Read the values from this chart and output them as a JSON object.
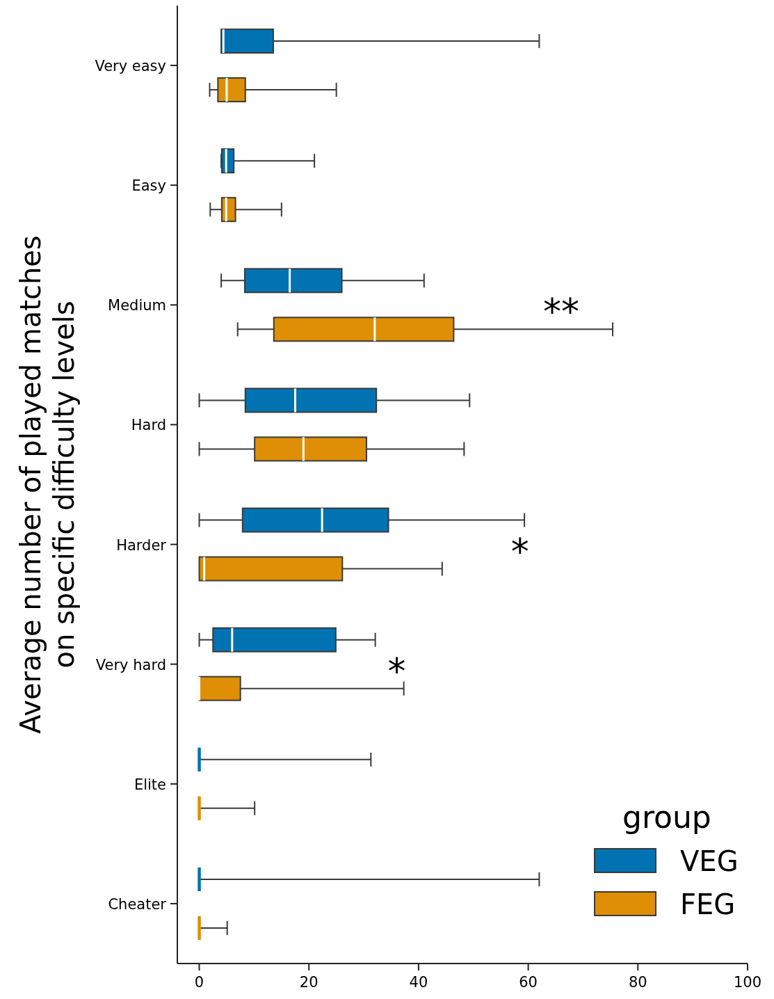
{
  "chart_data": {
    "type": "box",
    "orientation": "horizontal",
    "ylabel": "Average number of played matches\non specific difficulty levels",
    "categories": [
      "Very easy",
      "Easy",
      "Medium",
      "Hard",
      "Harder",
      "Very hard",
      "Elite",
      "Cheater"
    ],
    "xlim": [
      -4,
      100
    ],
    "xticks": [
      0,
      20,
      40,
      60,
      80,
      100
    ],
    "grid": false,
    "legend": "bottom right",
    "legend_title": "group",
    "series": [
      {
        "name": "VEG",
        "color": "#0173b2",
        "boxes": [
          {
            "low": 4,
            "q1": 4,
            "median": 4.4,
            "q3": 13.5,
            "high": 62
          },
          {
            "low": 4,
            "q1": 4.1,
            "median": 4.9,
            "q3": 6.3,
            "high": 21
          },
          {
            "low": 4,
            "q1": 8.3,
            "median": 16.5,
            "q3": 26,
            "high": 41
          },
          {
            "low": 0,
            "q1": 8.4,
            "median": 17.5,
            "q3": 32.3,
            "high": 49.3
          },
          {
            "low": 0,
            "q1": 7.9,
            "median": 22.4,
            "q3": 34.5,
            "high": 59.3
          },
          {
            "low": 0,
            "q1": 2.5,
            "median": 6,
            "q3": 24.9,
            "high": 32.1
          },
          {
            "low": 0,
            "q1": 0,
            "median": 0,
            "q3": 0,
            "high": 31.3
          },
          {
            "low": 0,
            "q1": 0,
            "median": 0,
            "q3": 0,
            "high": 62
          }
        ]
      },
      {
        "name": "FEG",
        "color": "#de8f05",
        "boxes": [
          {
            "low": 1.9,
            "q1": 3.4,
            "median": 5,
            "q3": 8.4,
            "high": 25
          },
          {
            "low": 2,
            "q1": 4.1,
            "median": 4.9,
            "q3": 6.6,
            "high": 15
          },
          {
            "low": 7,
            "q1": 13.6,
            "median": 32,
            "q3": 46.4,
            "high": 75.4
          },
          {
            "low": 0,
            "q1": 10.1,
            "median": 19,
            "q3": 30.5,
            "high": 48.3
          },
          {
            "low": 0,
            "q1": 0,
            "median": 0.9,
            "q3": 26.1,
            "high": 44.3
          },
          {
            "low": 0,
            "q1": 0,
            "median": 0,
            "q3": 7.5,
            "high": 37.3
          },
          {
            "low": 0,
            "q1": 0,
            "median": 0,
            "q3": 0,
            "high": 10.1
          },
          {
            "low": 0,
            "q1": 0,
            "median": 0,
            "q3": 0,
            "high": 5.1
          }
        ]
      }
    ],
    "annotations": [
      "**",
      "*",
      "*"
    ]
  }
}
